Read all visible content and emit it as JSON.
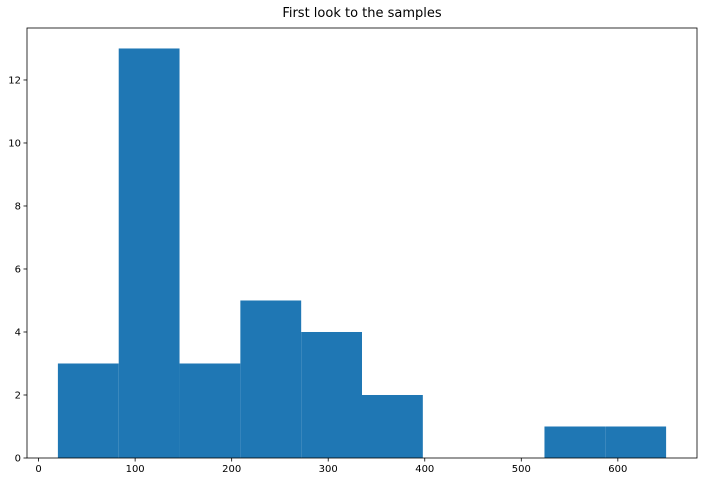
{
  "chart_data": {
    "type": "bar",
    "subtype": "histogram",
    "title": "First look to the samples",
    "xlabel": "",
    "ylabel": "",
    "bin_edges": [
      20,
      83,
      146,
      209,
      272,
      335,
      398,
      461,
      524,
      587,
      650
    ],
    "values": [
      3,
      13,
      3,
      5,
      4,
      2,
      0,
      0,
      1,
      1
    ],
    "xlim": [
      -12,
      682
    ],
    "ylim": [
      0,
      13.65
    ],
    "xticks": [
      0,
      100,
      200,
      300,
      400,
      500,
      600
    ],
    "yticks": [
      0,
      2,
      4,
      6,
      8,
      10,
      12
    ],
    "bar_color": "#1f77b4",
    "grid": false,
    "legend": "none"
  }
}
